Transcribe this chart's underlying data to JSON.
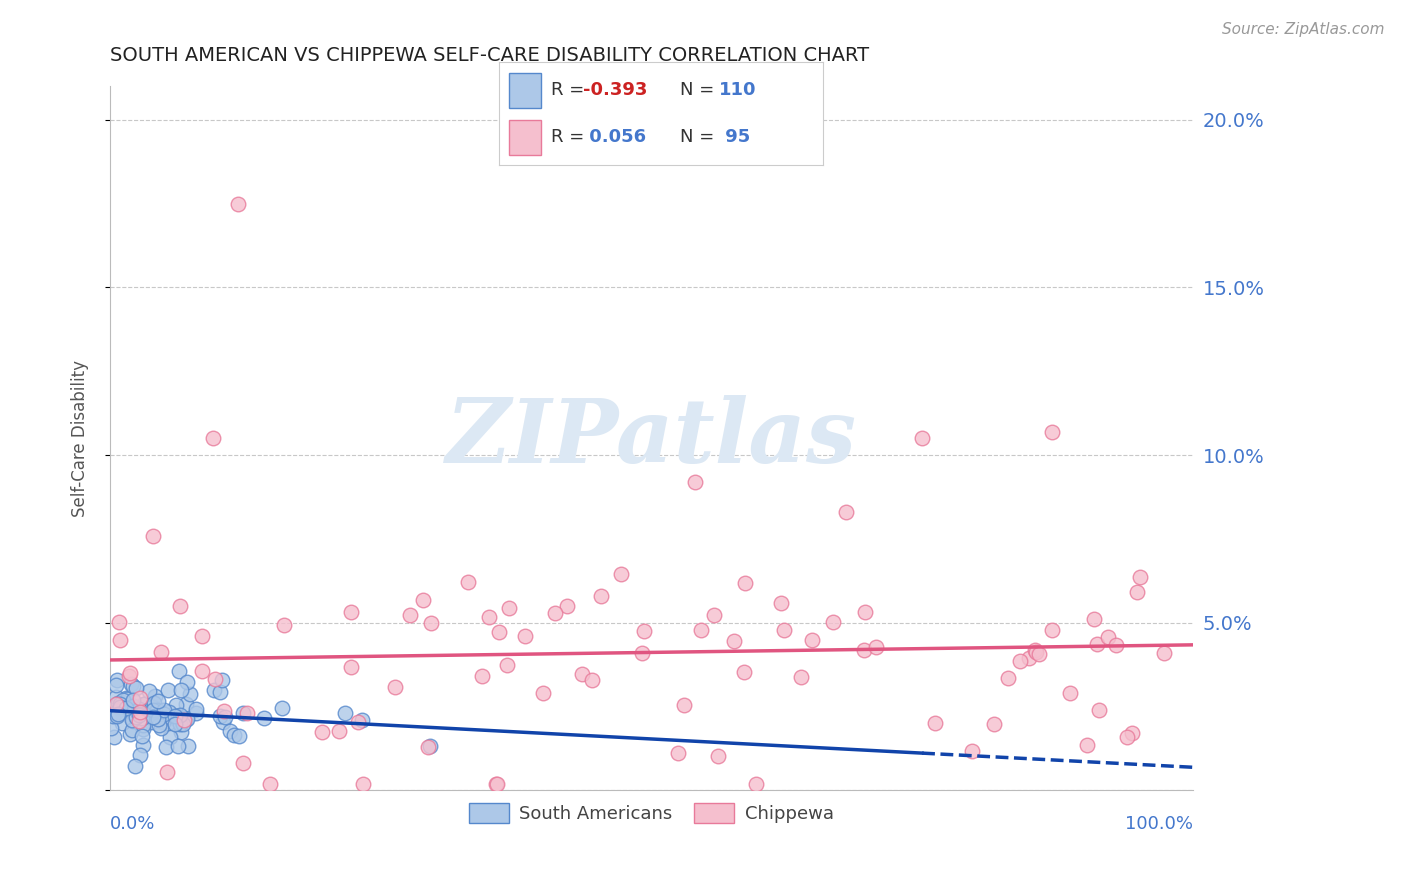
{
  "title": "SOUTH AMERICAN VS CHIPPEWA SELF-CARE DISABILITY CORRELATION CHART",
  "source": "Source: ZipAtlas.com",
  "ylabel": "Self-Care Disability",
  "xlim": [
    0,
    1.0
  ],
  "ylim": [
    0,
    0.21
  ],
  "yticks": [
    0.0,
    0.05,
    0.1,
    0.15,
    0.2
  ],
  "blue_R": -0.393,
  "blue_N": 110,
  "pink_R": 0.056,
  "pink_N": 95,
  "blue_color": "#adc8e8",
  "blue_edge": "#5588cc",
  "pink_color": "#f5bfce",
  "pink_edge": "#e87a9a",
  "blue_line_color": "#1144aa",
  "pink_line_color": "#e05580",
  "label_south": "South Americans",
  "label_chippewa": "Chippewa",
  "background_color": "#ffffff",
  "grid_color": "#c8c8c8",
  "title_color": "#222222",
  "axis_label_color": "#555555",
  "tick_color": "#4477cc",
  "r_neg_color": "#cc2222",
  "r_pos_color": "#4477cc",
  "n_color": "#4477cc",
  "watermark": "ZIPatlas"
}
